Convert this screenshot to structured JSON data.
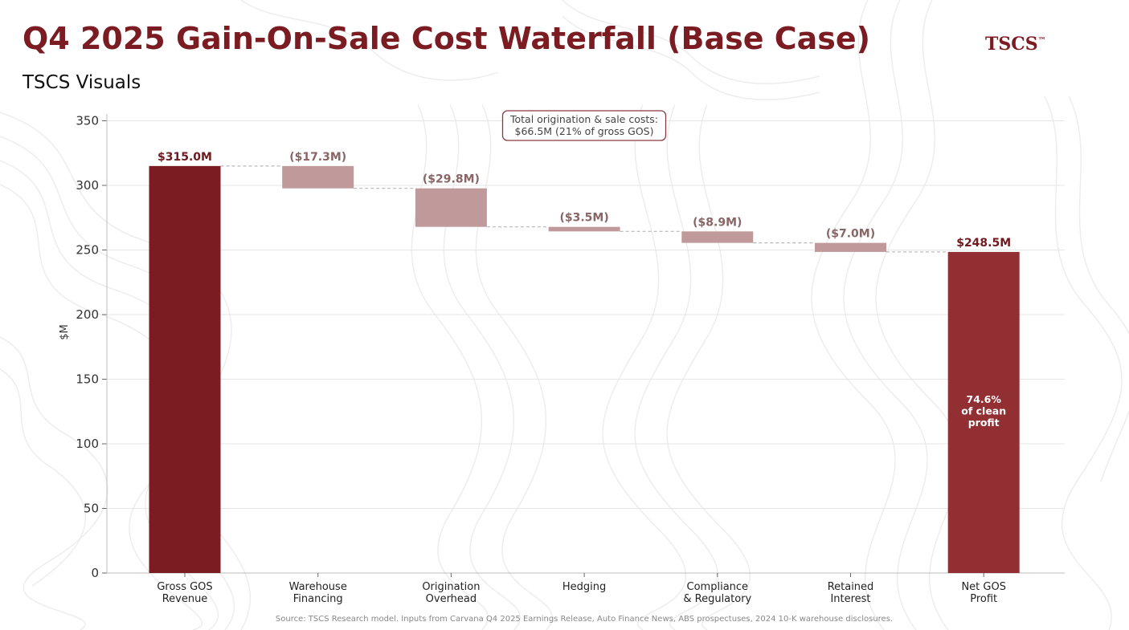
{
  "header": {
    "title": "Q4 2025 Gain-On-Sale Cost Waterfall (Base Case)",
    "subtitle": "TSCS Visuals",
    "brand": "TSCS",
    "brand_tm": "™"
  },
  "footer": {
    "source": "Source: TSCS Research model. Inputs from Carvana Q4 2025 Earnings Release, Auto Finance News, ABS prospectuses, 2024 10-K warehouse disclosures."
  },
  "colors": {
    "title": "#7b1c22",
    "total_bar": "#7b1c22",
    "net_bar": "#922f33",
    "cost_bar": "#c09a9a",
    "cost_label": "#8a6565",
    "total_label": "#6e1a1f",
    "connector": "#b8b8b8",
    "grid": "#e6e6e6"
  },
  "chart_data": {
    "type": "bar",
    "subtype": "waterfall",
    "title": "Q4 2025 Gain-On-Sale Cost Waterfall (Base Case)",
    "xlabel": "",
    "ylabel": "$M",
    "ylim": [
      0,
      350
    ],
    "yticks": [
      0,
      50,
      100,
      150,
      200,
      250,
      300,
      350
    ],
    "grid": true,
    "categories": [
      [
        "Gross GOS",
        "Revenue"
      ],
      [
        "Warehouse",
        "Financing"
      ],
      [
        "Origination",
        "Overhead"
      ],
      [
        "Hedging"
      ],
      [
        "Compliance",
        "& Regulatory"
      ],
      [
        "Retained",
        "Interest"
      ],
      [
        "Net GOS",
        "Profit"
      ]
    ],
    "steps": [
      {
        "kind": "total",
        "base": 0,
        "value": 315.0,
        "label": "$315.0M"
      },
      {
        "kind": "decrease",
        "base": 297.7,
        "value": 17.3,
        "label": "($17.3M)"
      },
      {
        "kind": "decrease",
        "base": 267.9,
        "value": 29.8,
        "label": "($29.8M)"
      },
      {
        "kind": "decrease",
        "base": 264.4,
        "value": 3.5,
        "label": "($3.5M)"
      },
      {
        "kind": "decrease",
        "base": 255.5,
        "value": 8.9,
        "label": "($8.9M)"
      },
      {
        "kind": "decrease",
        "base": 248.5,
        "value": 7.0,
        "label": "($7.0M)"
      },
      {
        "kind": "total",
        "base": 0,
        "value": 248.5,
        "label": "$248.5M"
      }
    ],
    "inner_note": {
      "bar_index": 6,
      "lines": [
        "74.6%",
        "of clean",
        "profit"
      ]
    },
    "annotation": {
      "lines": [
        "Total origination & sale costs:",
        "$66.5M  (21% of gross GOS)"
      ],
      "placement": "top-center"
    }
  }
}
